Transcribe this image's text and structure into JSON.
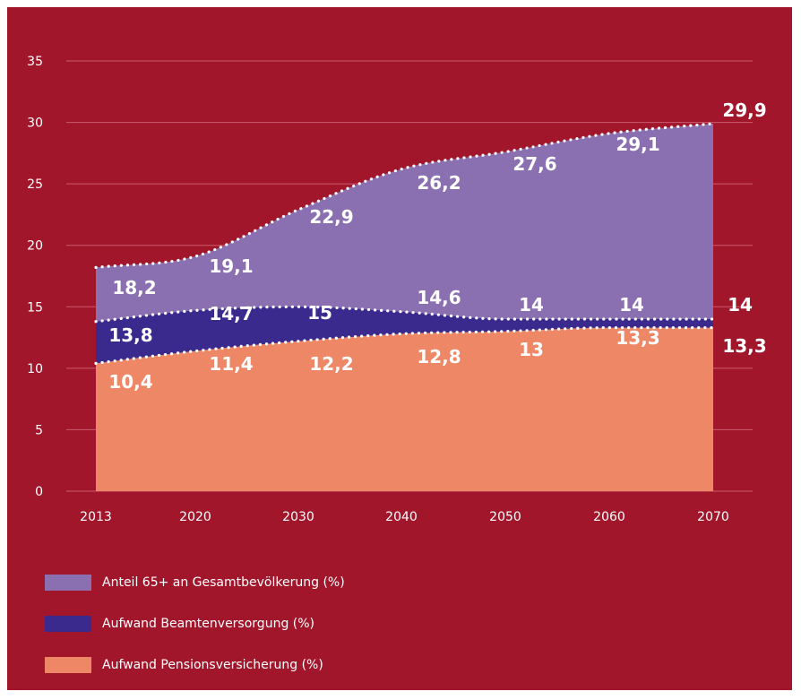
{
  "colors": {
    "background": "#a2162c",
    "anteil": "#8b70b1",
    "beamten": "#3b2a8e",
    "pension": "#ee8766",
    "grid": "#c85a6c"
  },
  "chart_data": {
    "type": "area",
    "title": "",
    "xlabel": "",
    "ylabel": "",
    "x": [
      2013,
      2020,
      2030,
      2040,
      2050,
      2060,
      2070
    ],
    "ylim": [
      0,
      35
    ],
    "yticks": [
      0,
      5,
      10,
      15,
      20,
      25,
      30,
      35
    ],
    "grid": true,
    "legend_position": "bottom-left",
    "series": [
      {
        "name": "Anteil 65+ an Gesamtbevölkerung (%)",
        "values": [
          18.2,
          19.1,
          22.9,
          26.2,
          27.6,
          29.1,
          29.9
        ],
        "labels": [
          "18,2",
          "19,1",
          "22,9",
          "26,2",
          "27,6",
          "29,1",
          "29,9"
        ]
      },
      {
        "name": "Aufwand Beamtenversorgung (%)",
        "values": [
          13.8,
          14.7,
          15,
          14.6,
          14,
          14,
          14
        ],
        "labels": [
          "13,8",
          "14,7",
          "15",
          "14,6",
          "14",
          "14",
          "14"
        ]
      },
      {
        "name": "Aufwand Pensionsversicherung (%)",
        "values": [
          10.4,
          11.4,
          12.2,
          12.8,
          13,
          13.3,
          13.3
        ],
        "labels": [
          "10,4",
          "11,4",
          "12,2",
          "12,8",
          "13",
          "13,3",
          "13,3"
        ]
      }
    ]
  }
}
